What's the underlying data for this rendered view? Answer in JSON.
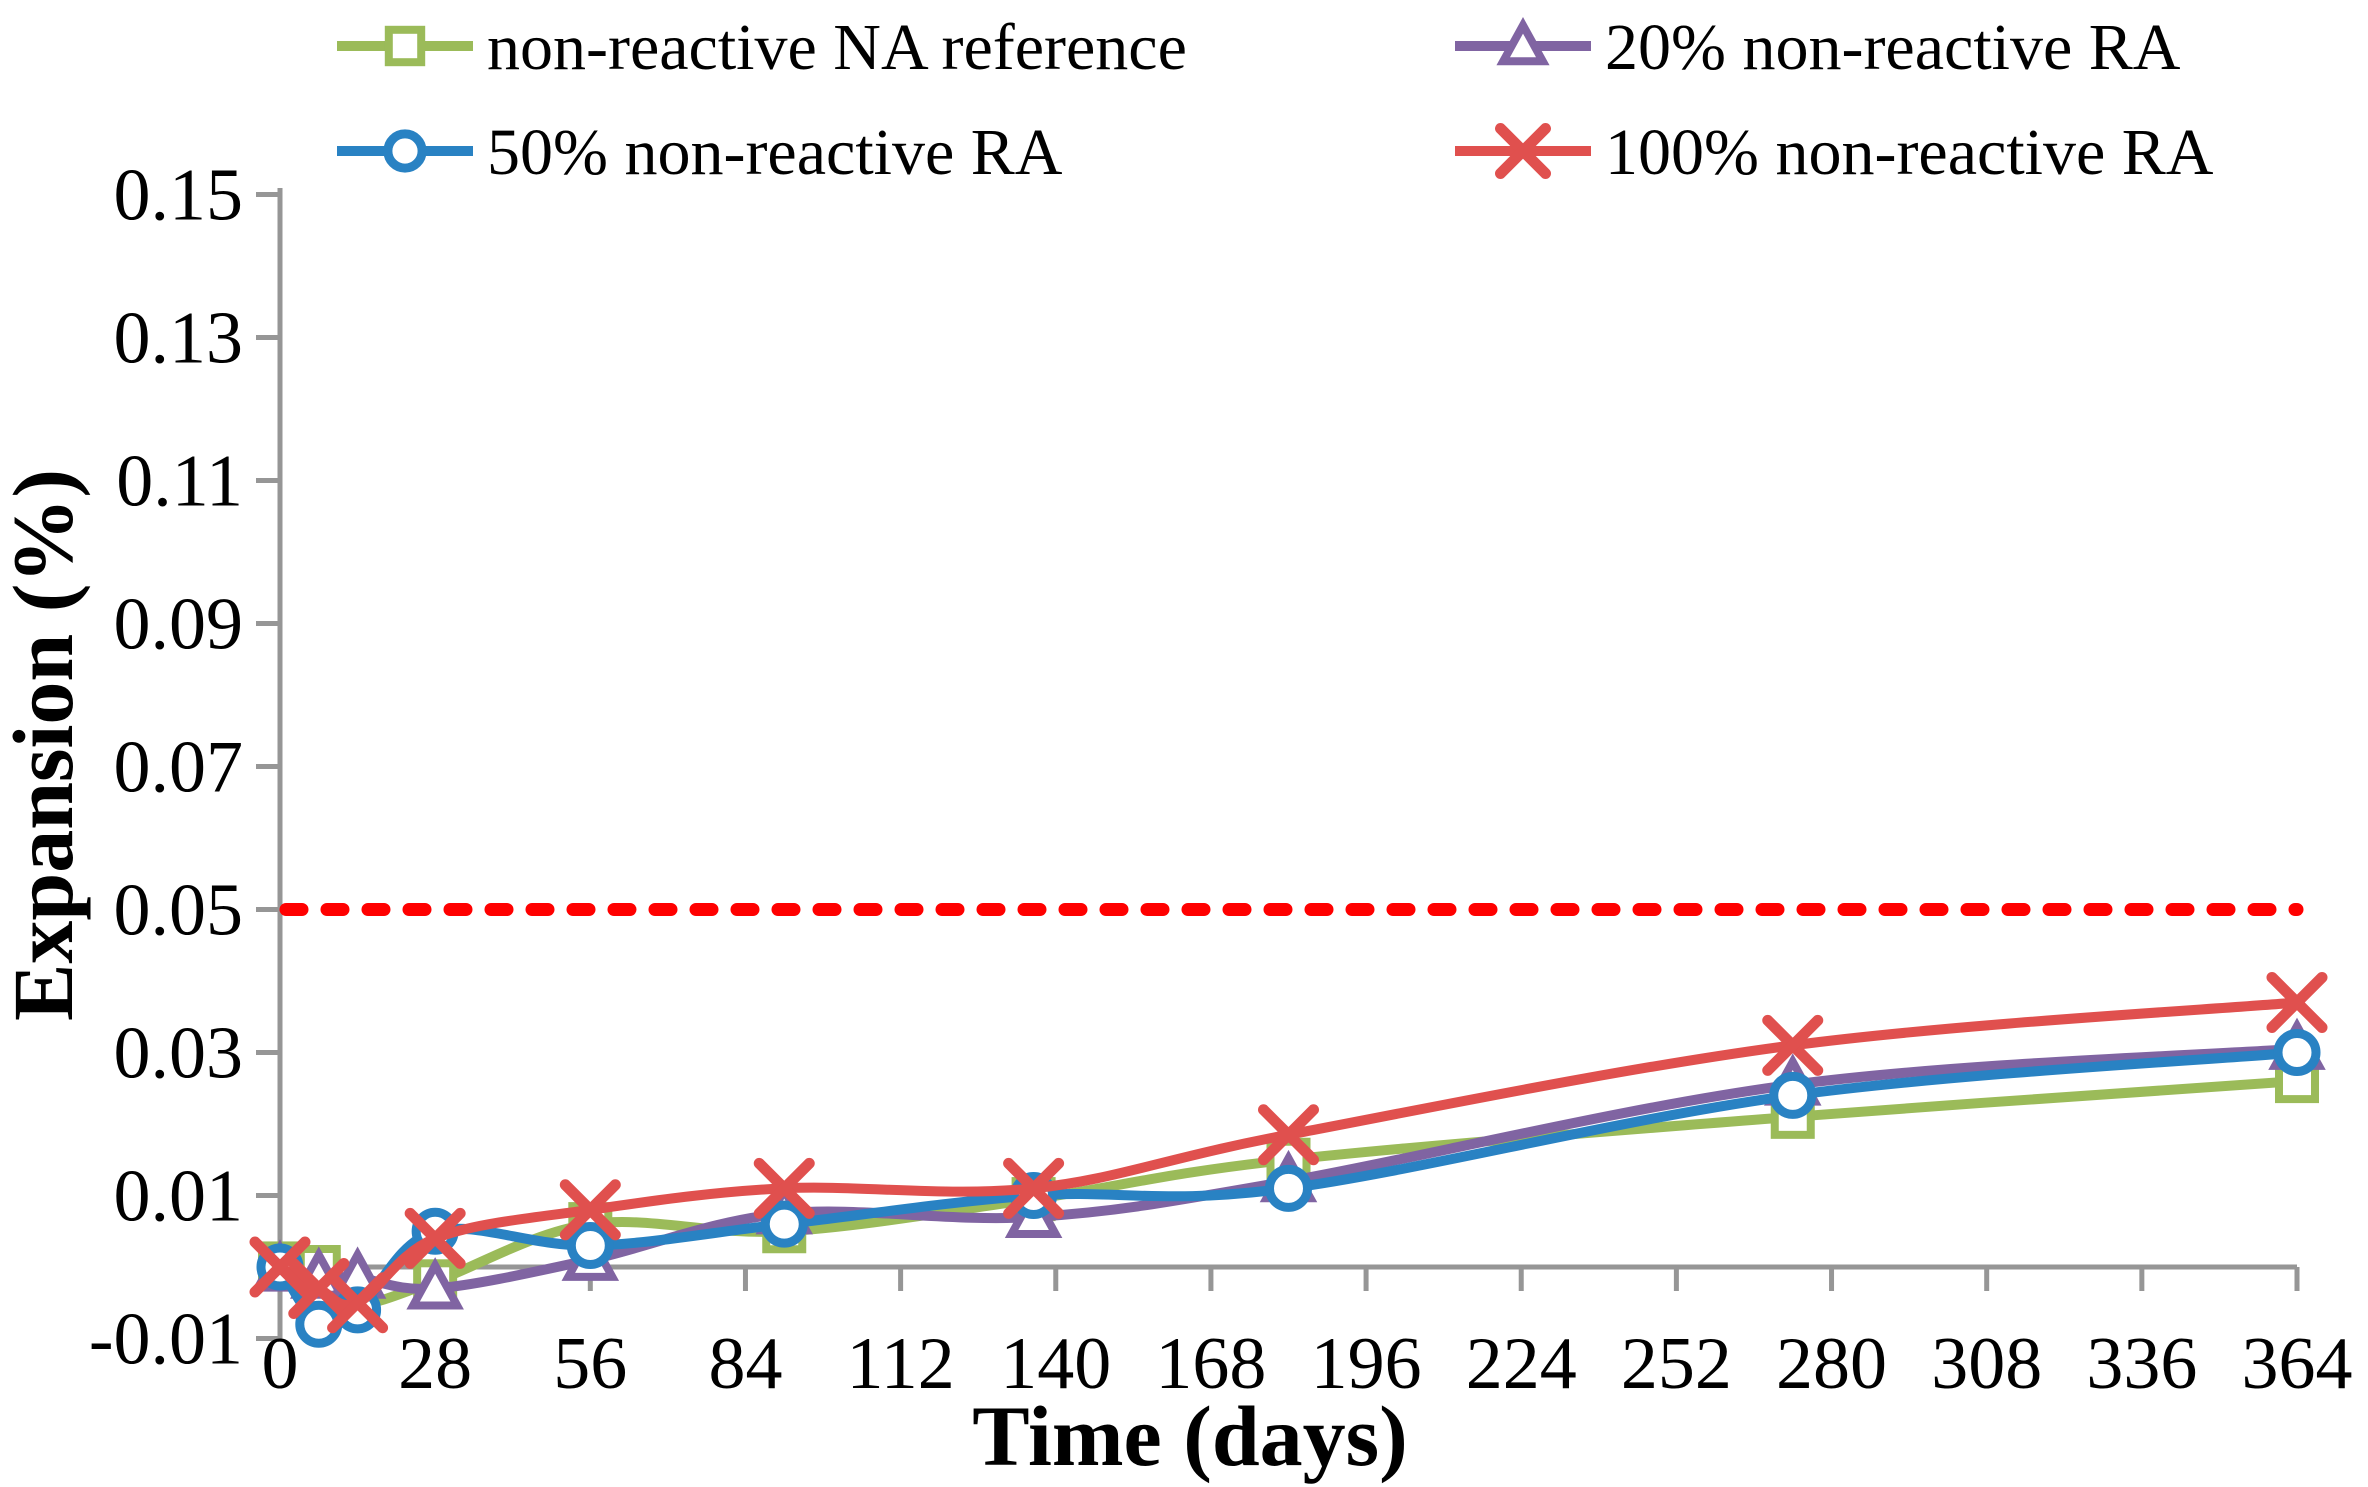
{
  "chart_data": {
    "type": "line",
    "title": "",
    "xlabel": "Time  (days)",
    "ylabel": "Expansion  (%)",
    "xlim": [
      0,
      364
    ],
    "ylim": [
      -0.01,
      0.15
    ],
    "x_ticks": [
      0,
      28,
      56,
      84,
      112,
      140,
      168,
      196,
      224,
      252,
      280,
      308,
      336,
      364
    ],
    "y_ticks": [
      -0.01,
      0.01,
      0.03,
      0.05,
      0.07,
      0.09,
      0.11,
      0.13,
      0.15
    ],
    "grid": false,
    "legend_position": "top",
    "legend_rows": [
      [
        0,
        1
      ],
      [
        2,
        3
      ]
    ],
    "x": [
      0,
      7,
      14,
      28,
      56,
      91,
      136,
      182,
      273,
      364
    ],
    "series": [
      {
        "name": "non-reactive NA reference",
        "color": "#9BBB59",
        "marker": "square",
        "values": [
          0.0005,
          0.0,
          -0.005,
          -0.002,
          0.006,
          0.005,
          0.0095,
          0.015,
          0.021,
          0.026
        ]
      },
      {
        "name": "20% non-reactive RA",
        "color": "#8064A2",
        "marker": "triangle",
        "values": [
          -0.0005,
          -0.0015,
          -0.0015,
          -0.003,
          0.001,
          0.0075,
          0.007,
          0.012,
          0.0255,
          0.0305
        ]
      },
      {
        "name": "50% non-reactive RA",
        "color": "#2982C3",
        "marker": "circle",
        "values": [
          0.0,
          -0.008,
          -0.006,
          0.005,
          0.003,
          0.006,
          0.01,
          0.011,
          0.024,
          0.03
        ]
      },
      {
        "name": "100% non-reactive RA",
        "color": "#E0504E",
        "marker": "x",
        "values": [
          0.0,
          -0.003,
          -0.005,
          0.004,
          0.008,
          0.011,
          0.011,
          0.0185,
          0.031,
          0.037
        ]
      }
    ],
    "threshold_line": {
      "value": 0.05,
      "color": "#FF0000",
      "style": "dashed"
    },
    "axis_color": "#969696"
  }
}
